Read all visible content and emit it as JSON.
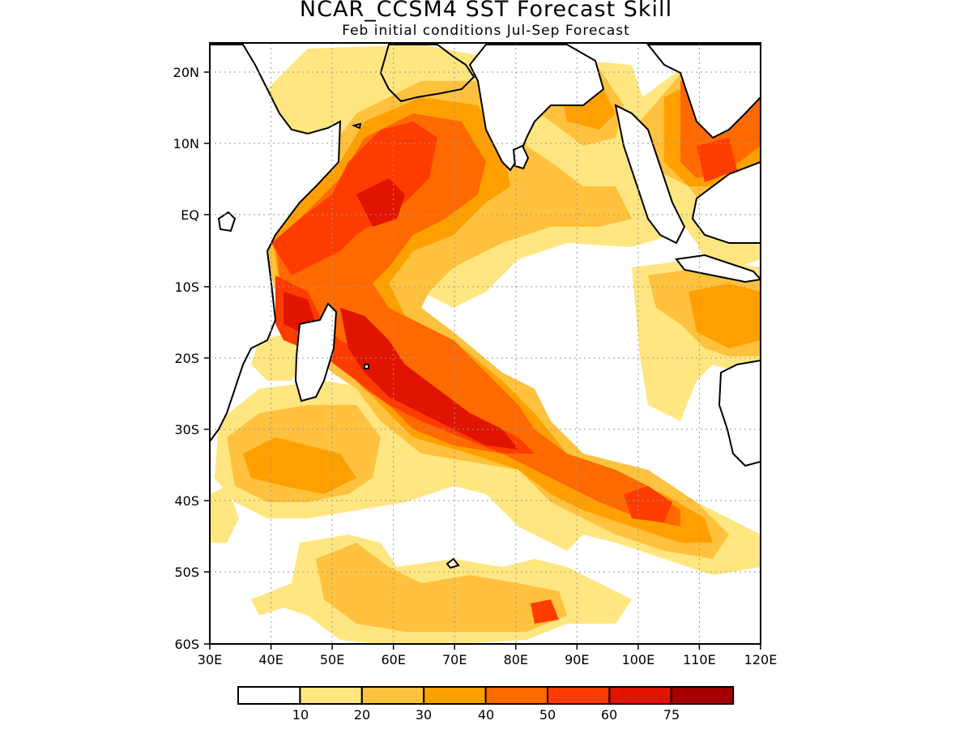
{
  "title": "NCAR_CCSM4 SST Forecast Skill",
  "subtitle": "Feb initial conditions  Jul-Sep Forecast",
  "map": {
    "lon_range": [
      30,
      120
    ],
    "lat_range": [
      -60,
      24
    ],
    "lon_labels": [
      "30E",
      "40E",
      "50E",
      "60E",
      "70E",
      "80E",
      "90E",
      "100E",
      "110E",
      "120E"
    ],
    "lat_labels": [
      "20N",
      "10N",
      "EQ",
      "10S",
      "20S",
      "30S",
      "40S",
      "50S",
      "60S"
    ],
    "gridlines": "dotted"
  },
  "colorbar": {
    "levels": [
      "10",
      "20",
      "30",
      "40",
      "50",
      "60",
      "75"
    ],
    "colors": [
      "#ffffff",
      "#ffe680",
      "#ffc13e",
      "#ffa000",
      "#ff6a00",
      "#ff3c00",
      "#e11400",
      "#a50000"
    ]
  }
}
